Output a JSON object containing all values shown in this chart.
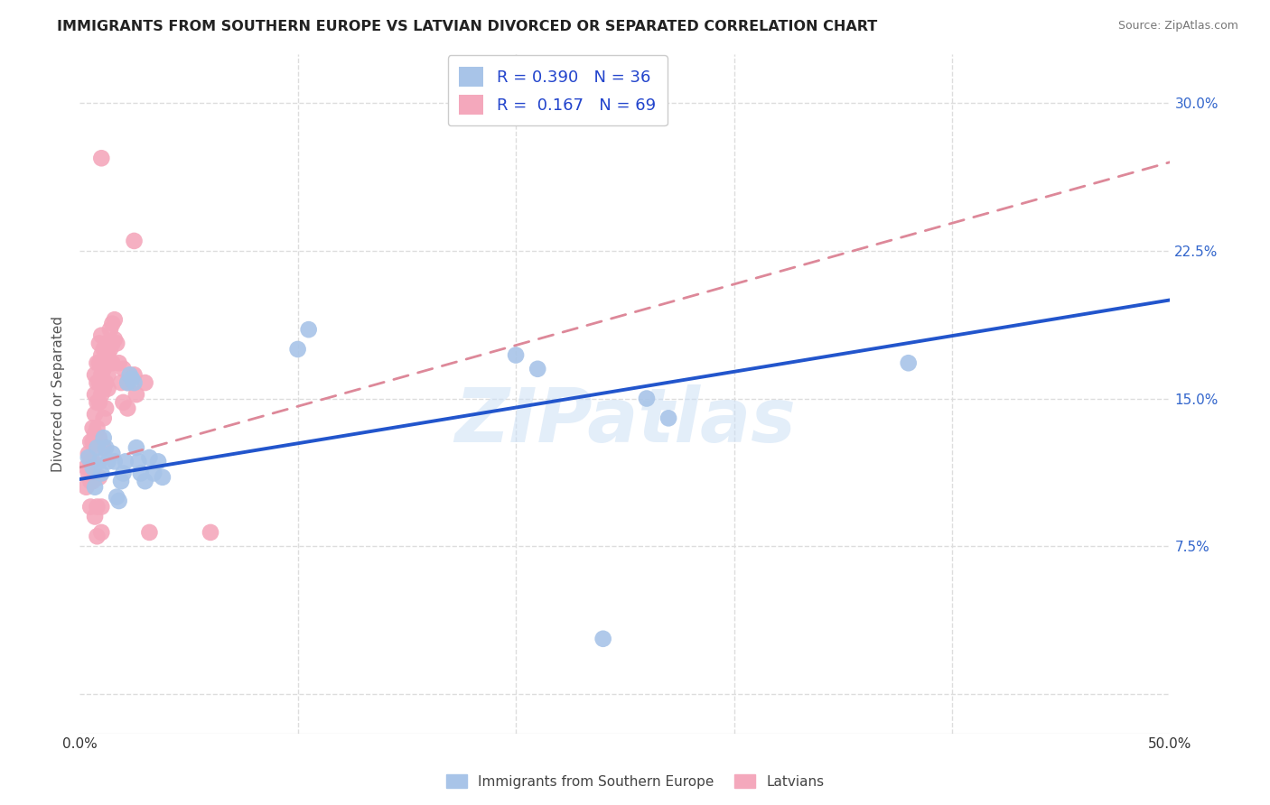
{
  "title": "IMMIGRANTS FROM SOUTHERN EUROPE VS LATVIAN DIVORCED OR SEPARATED CORRELATION CHART",
  "source": "Source: ZipAtlas.com",
  "ylabel": "Divorced or Separated",
  "legend_label_blue": "Immigrants from Southern Europe",
  "legend_label_pink": "Latvians",
  "blue_color": "#a8c4e8",
  "pink_color": "#f4a8bc",
  "blue_line_color": "#2255cc",
  "pink_line_color": "#dd8899",
  "watermark": "ZIPatlas",
  "blue_line_x0": 0.0,
  "blue_line_y0": 0.109,
  "blue_line_x1": 0.5,
  "blue_line_y1": 0.2,
  "pink_line_x0": 0.0,
  "pink_line_y0": 0.115,
  "pink_line_x1": 0.5,
  "pink_line_y1": 0.27,
  "blue_scatter": [
    [
      0.004,
      0.12
    ],
    [
      0.006,
      0.115
    ],
    [
      0.007,
      0.105
    ],
    [
      0.008,
      0.125
    ],
    [
      0.009,
      0.118
    ],
    [
      0.01,
      0.112
    ],
    [
      0.011,
      0.13
    ],
    [
      0.012,
      0.125
    ],
    [
      0.013,
      0.118
    ],
    [
      0.015,
      0.122
    ],
    [
      0.016,
      0.118
    ],
    [
      0.017,
      0.1
    ],
    [
      0.018,
      0.098
    ],
    [
      0.019,
      0.108
    ],
    [
      0.02,
      0.112
    ],
    [
      0.021,
      0.118
    ],
    [
      0.022,
      0.158
    ],
    [
      0.023,
      0.162
    ],
    [
      0.024,
      0.16
    ],
    [
      0.025,
      0.158
    ],
    [
      0.026,
      0.125
    ],
    [
      0.027,
      0.118
    ],
    [
      0.028,
      0.112
    ],
    [
      0.03,
      0.108
    ],
    [
      0.032,
      0.12
    ],
    [
      0.034,
      0.112
    ],
    [
      0.036,
      0.118
    ],
    [
      0.038,
      0.11
    ],
    [
      0.1,
      0.175
    ],
    [
      0.105,
      0.185
    ],
    [
      0.2,
      0.172
    ],
    [
      0.21,
      0.165
    ],
    [
      0.26,
      0.15
    ],
    [
      0.27,
      0.14
    ],
    [
      0.38,
      0.168
    ],
    [
      0.24,
      0.028
    ]
  ],
  "pink_scatter": [
    [
      0.003,
      0.115
    ],
    [
      0.003,
      0.105
    ],
    [
      0.004,
      0.122
    ],
    [
      0.004,
      0.112
    ],
    [
      0.005,
      0.128
    ],
    [
      0.005,
      0.118
    ],
    [
      0.005,
      0.108
    ],
    [
      0.005,
      0.095
    ],
    [
      0.006,
      0.135
    ],
    [
      0.006,
      0.128
    ],
    [
      0.006,
      0.118
    ],
    [
      0.006,
      0.108
    ],
    [
      0.007,
      0.162
    ],
    [
      0.007,
      0.152
    ],
    [
      0.007,
      0.142
    ],
    [
      0.007,
      0.132
    ],
    [
      0.007,
      0.11
    ],
    [
      0.007,
      0.09
    ],
    [
      0.008,
      0.168
    ],
    [
      0.008,
      0.158
    ],
    [
      0.008,
      0.148
    ],
    [
      0.008,
      0.135
    ],
    [
      0.008,
      0.095
    ],
    [
      0.008,
      0.08
    ],
    [
      0.009,
      0.178
    ],
    [
      0.009,
      0.168
    ],
    [
      0.009,
      0.158
    ],
    [
      0.009,
      0.148
    ],
    [
      0.009,
      0.13
    ],
    [
      0.009,
      0.11
    ],
    [
      0.01,
      0.182
    ],
    [
      0.01,
      0.172
    ],
    [
      0.01,
      0.162
    ],
    [
      0.01,
      0.152
    ],
    [
      0.01,
      0.095
    ],
    [
      0.01,
      0.082
    ],
    [
      0.011,
      0.175
    ],
    [
      0.011,
      0.165
    ],
    [
      0.011,
      0.155
    ],
    [
      0.011,
      0.14
    ],
    [
      0.011,
      0.125
    ],
    [
      0.012,
      0.178
    ],
    [
      0.012,
      0.168
    ],
    [
      0.012,
      0.158
    ],
    [
      0.012,
      0.145
    ],
    [
      0.013,
      0.172
    ],
    [
      0.013,
      0.162
    ],
    [
      0.013,
      0.155
    ],
    [
      0.014,
      0.185
    ],
    [
      0.014,
      0.175
    ],
    [
      0.015,
      0.188
    ],
    [
      0.015,
      0.178
    ],
    [
      0.015,
      0.168
    ],
    [
      0.016,
      0.19
    ],
    [
      0.016,
      0.18
    ],
    [
      0.017,
      0.178
    ],
    [
      0.018,
      0.168
    ],
    [
      0.019,
      0.158
    ],
    [
      0.02,
      0.165
    ],
    [
      0.02,
      0.148
    ],
    [
      0.022,
      0.158
    ],
    [
      0.022,
      0.145
    ],
    [
      0.025,
      0.162
    ],
    [
      0.026,
      0.152
    ],
    [
      0.03,
      0.158
    ],
    [
      0.032,
      0.082
    ],
    [
      0.06,
      0.082
    ],
    [
      0.01,
      0.272
    ],
    [
      0.025,
      0.23
    ]
  ],
  "xlim": [
    0.0,
    0.5
  ],
  "ylim": [
    -0.02,
    0.325
  ],
  "xtick_vals": [
    0.0,
    0.1,
    0.2,
    0.3,
    0.4,
    0.5
  ],
  "xtick_labels": [
    "0.0%",
    "",
    "",
    "",
    "",
    "50.0%"
  ],
  "ytick_vals": [
    0.0,
    0.075,
    0.15,
    0.225,
    0.3
  ],
  "ytick_labels": [
    "",
    "7.5%",
    "15.0%",
    "22.5%",
    "30.0%"
  ],
  "grid_color": "#dddddd",
  "title_fontsize": 12,
  "axis_label_fontsize": 11
}
